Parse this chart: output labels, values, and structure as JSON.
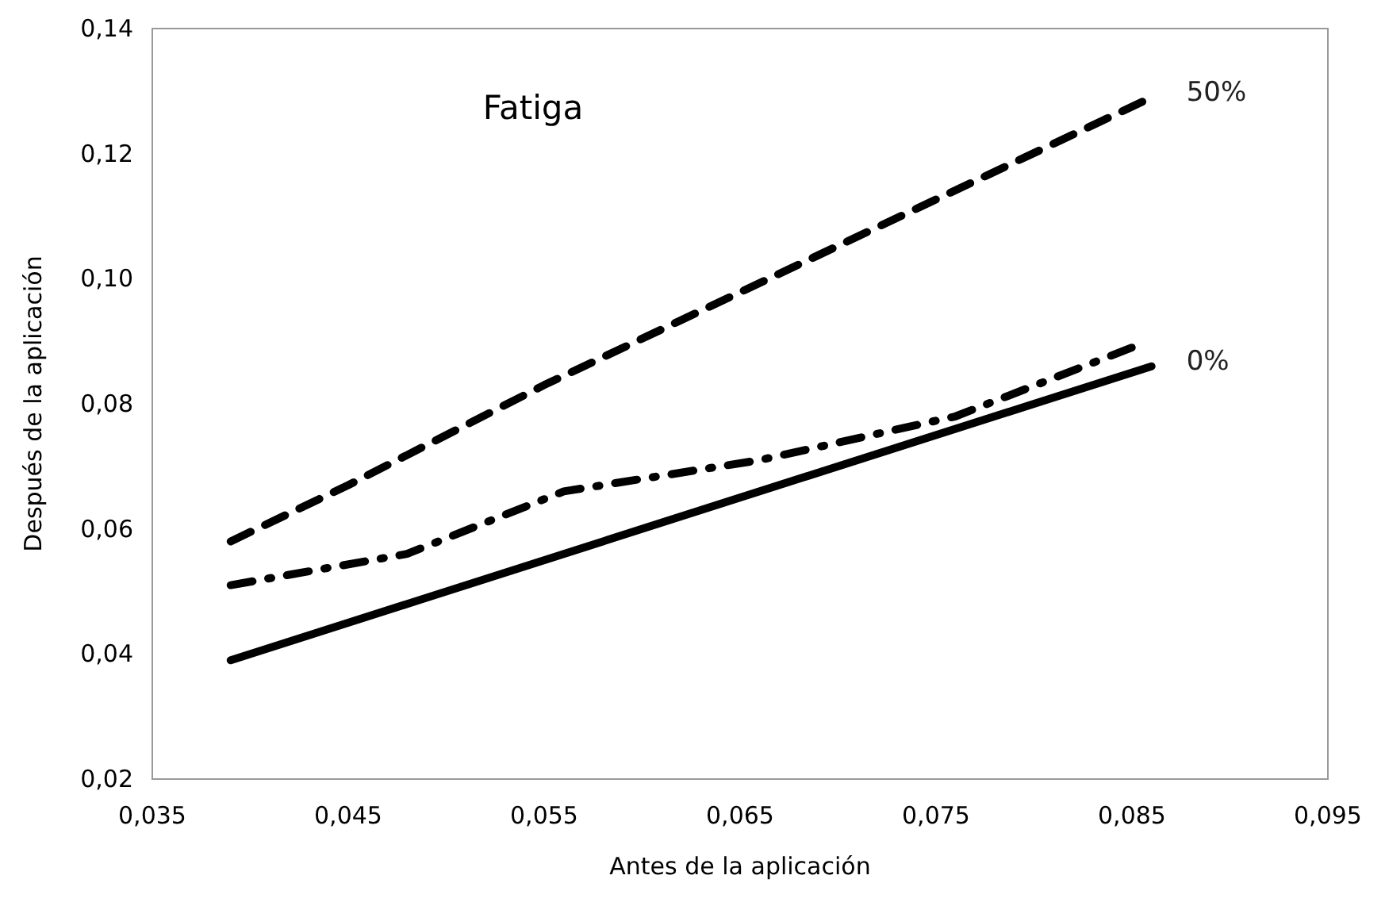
{
  "chart_data": {
    "type": "line",
    "title": "Fatiga",
    "xlabel": "Antes de la aplicación",
    "ylabel": "Después de la aplicación",
    "xlim": [
      0.035,
      0.095
    ],
    "xticks": [
      {
        "value": 0.035,
        "label": "0,035"
      },
      {
        "value": 0.045,
        "label": "0,045"
      },
      {
        "value": 0.055,
        "label": "0,055"
      },
      {
        "value": 0.065,
        "label": "0,065"
      },
      {
        "value": 0.075,
        "label": "0,075"
      },
      {
        "value": 0.085,
        "label": "0,085"
      },
      {
        "value": 0.095,
        "label": "0,095"
      }
    ],
    "ylim": [
      0.02,
      0.14
    ],
    "yticks": [
      {
        "value": 0.02,
        "label": "0,02"
      },
      {
        "value": 0.04,
        "label": "0,04"
      },
      {
        "value": 0.06,
        "label": "0,06"
      },
      {
        "value": 0.08,
        "label": "0,08"
      },
      {
        "value": 0.1,
        "label": "0,10"
      },
      {
        "value": 0.12,
        "label": "0,12"
      },
      {
        "value": 0.14,
        "label": "0,14"
      }
    ],
    "grid": false,
    "marker": "none",
    "series": [
      {
        "name": "50%",
        "color": "#000000",
        "line_style": "dashed",
        "x": [
          0.039,
          0.045,
          0.055,
          0.086
        ],
        "values": [
          0.058,
          0.067,
          0.083,
          0.129
        ]
      },
      {
        "color": "#000000",
        "line_style": "dashdot",
        "x": [
          0.039,
          0.048,
          0.056,
          0.066,
          0.076,
          0.085
        ],
        "values": [
          0.051,
          0.056,
          0.066,
          0.071,
          0.078,
          0.089
        ]
      },
      {
        "name": "0%",
        "color": "#000000",
        "line_style": "solid",
        "x": [
          0.039,
          0.086
        ],
        "values": [
          0.039,
          0.086
        ]
      }
    ]
  }
}
